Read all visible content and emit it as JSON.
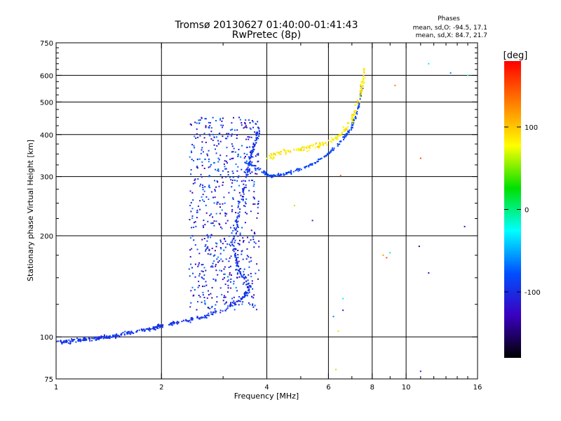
{
  "chart_data": {
    "type": "scatter",
    "title": "Tromsø 20130627 01:40:00-01:41:43",
    "subtitle": "RwPretec (8p)",
    "xlabel": "Frequency [MHz]",
    "ylabel": "Stationary phase Virtual Height [km]",
    "x_scale": "log",
    "y_scale": "log",
    "xlim": [
      1,
      16
    ],
    "ylim": [
      75,
      750
    ],
    "x_ticks": [
      1,
      2,
      4,
      6,
      8,
      10,
      16
    ],
    "x_tick_labels": [
      "1",
      "2",
      "4",
      "6",
      "8",
      "10",
      "16"
    ],
    "x_minor_ticks": [
      3,
      5,
      7,
      9,
      11,
      12,
      13,
      14,
      15
    ],
    "y_ticks": [
      75,
      100,
      200,
      300,
      400,
      500,
      600,
      750
    ],
    "y_tick_labels": [
      "75",
      "100",
      "200",
      "300",
      "400",
      "500",
      "600",
      "750"
    ],
    "y_minor_ticks": [
      125,
      150,
      175,
      225,
      250,
      275,
      325,
      350,
      375,
      425,
      450,
      475,
      525,
      550,
      575,
      625,
      650,
      675,
      700,
      725
    ],
    "grid_x": [
      2,
      4,
      6,
      8,
      10
    ],
    "grid_y": [
      100,
      200,
      300,
      400,
      500,
      600
    ],
    "legend": {
      "title": "Phases",
      "lines": [
        "mean, sd,O: -94.5, 17.1",
        "mean, sd,X:  84.7, 21.7"
      ]
    },
    "colorbar": {
      "label": "[deg]",
      "range": [
        -180,
        180
      ],
      "ticks": [
        100,
        0,
        -100
      ],
      "tick_labels": [
        "100",
        "0",
        "-100"
      ],
      "colors": [
        "#ff0000",
        "#ff8000",
        "#ffff00",
        "#00e000",
        "#00ffff",
        "#0050ff",
        "#3a00c0",
        "#000000"
      ]
    },
    "o_trace": {
      "name": "",
      "points": [
        [
          1.0,
          97
        ],
        [
          1.1,
          97
        ],
        [
          1.2,
          98
        ],
        [
          1.3,
          99
        ],
        [
          1.4,
          100
        ],
        [
          1.5,
          101
        ],
        [
          1.7,
          104
        ],
        [
          1.9,
          106
        ],
        [
          2.0,
          108
        ],
        [
          2.3,
          111
        ],
        [
          2.6,
          114
        ],
        [
          3.0,
          120
        ],
        [
          3.4,
          130
        ],
        [
          3.6,
          140
        ],
        [
          3.3,
          160
        ],
        [
          3.2,
          190
        ],
        [
          3.3,
          230
        ],
        [
          3.5,
          300
        ],
        [
          3.6,
          345
        ],
        [
          3.7,
          380
        ],
        [
          3.8,
          420
        ]
      ],
      "phase": -95
    },
    "f_trace": {
      "name": "",
      "points": [
        [
          3.5,
          330
        ],
        [
          3.9,
          310
        ],
        [
          4.1,
          300
        ],
        [
          4.5,
          305
        ],
        [
          5.0,
          315
        ],
        [
          5.5,
          330
        ],
        [
          6.0,
          350
        ],
        [
          6.5,
          380
        ],
        [
          7.0,
          420
        ],
        [
          7.3,
          480
        ],
        [
          7.5,
          560
        ]
      ],
      "phase": -85
    },
    "x_trace": {
      "name": "",
      "points": [
        [
          4.0,
          340
        ],
        [
          4.4,
          355
        ],
        [
          5.0,
          360
        ],
        [
          5.5,
          370
        ],
        [
          6.0,
          380
        ],
        [
          6.5,
          400
        ],
        [
          7.0,
          440
        ],
        [
          7.3,
          500
        ],
        [
          7.5,
          560
        ],
        [
          7.6,
          630
        ]
      ],
      "phase": 85
    },
    "diffuse_region": {
      "x_range": [
        2.4,
        3.8
      ],
      "y_range": [
        120,
        450
      ],
      "phase_range": [
        -140,
        -60
      ]
    },
    "isolated_points": [
      [
        11.0,
        79,
        -100
      ],
      [
        13.4,
        610,
        -60
      ],
      [
        15.0,
        600,
        -20
      ],
      [
        11.0,
        340,
        150
      ],
      [
        10.9,
        186,
        -140
      ],
      [
        11.6,
        155,
        -120
      ],
      [
        14.7,
        213,
        -120
      ],
      [
        8.8,
        172,
        150
      ],
      [
        9.3,
        560,
        130
      ],
      [
        11.6,
        650,
        -30
      ],
      [
        8.6,
        175,
        120
      ],
      [
        9.0,
        178,
        -10
      ],
      [
        6.3,
        80,
        60
      ],
      [
        6.4,
        104,
        90
      ],
      [
        6.2,
        115,
        -60
      ],
      [
        5.4,
        222,
        -110
      ],
      [
        4.8,
        246,
        60
      ],
      [
        6.5,
        302,
        140
      ],
      [
        6.6,
        130,
        -30
      ],
      [
        6.6,
        120,
        -110
      ]
    ]
  }
}
